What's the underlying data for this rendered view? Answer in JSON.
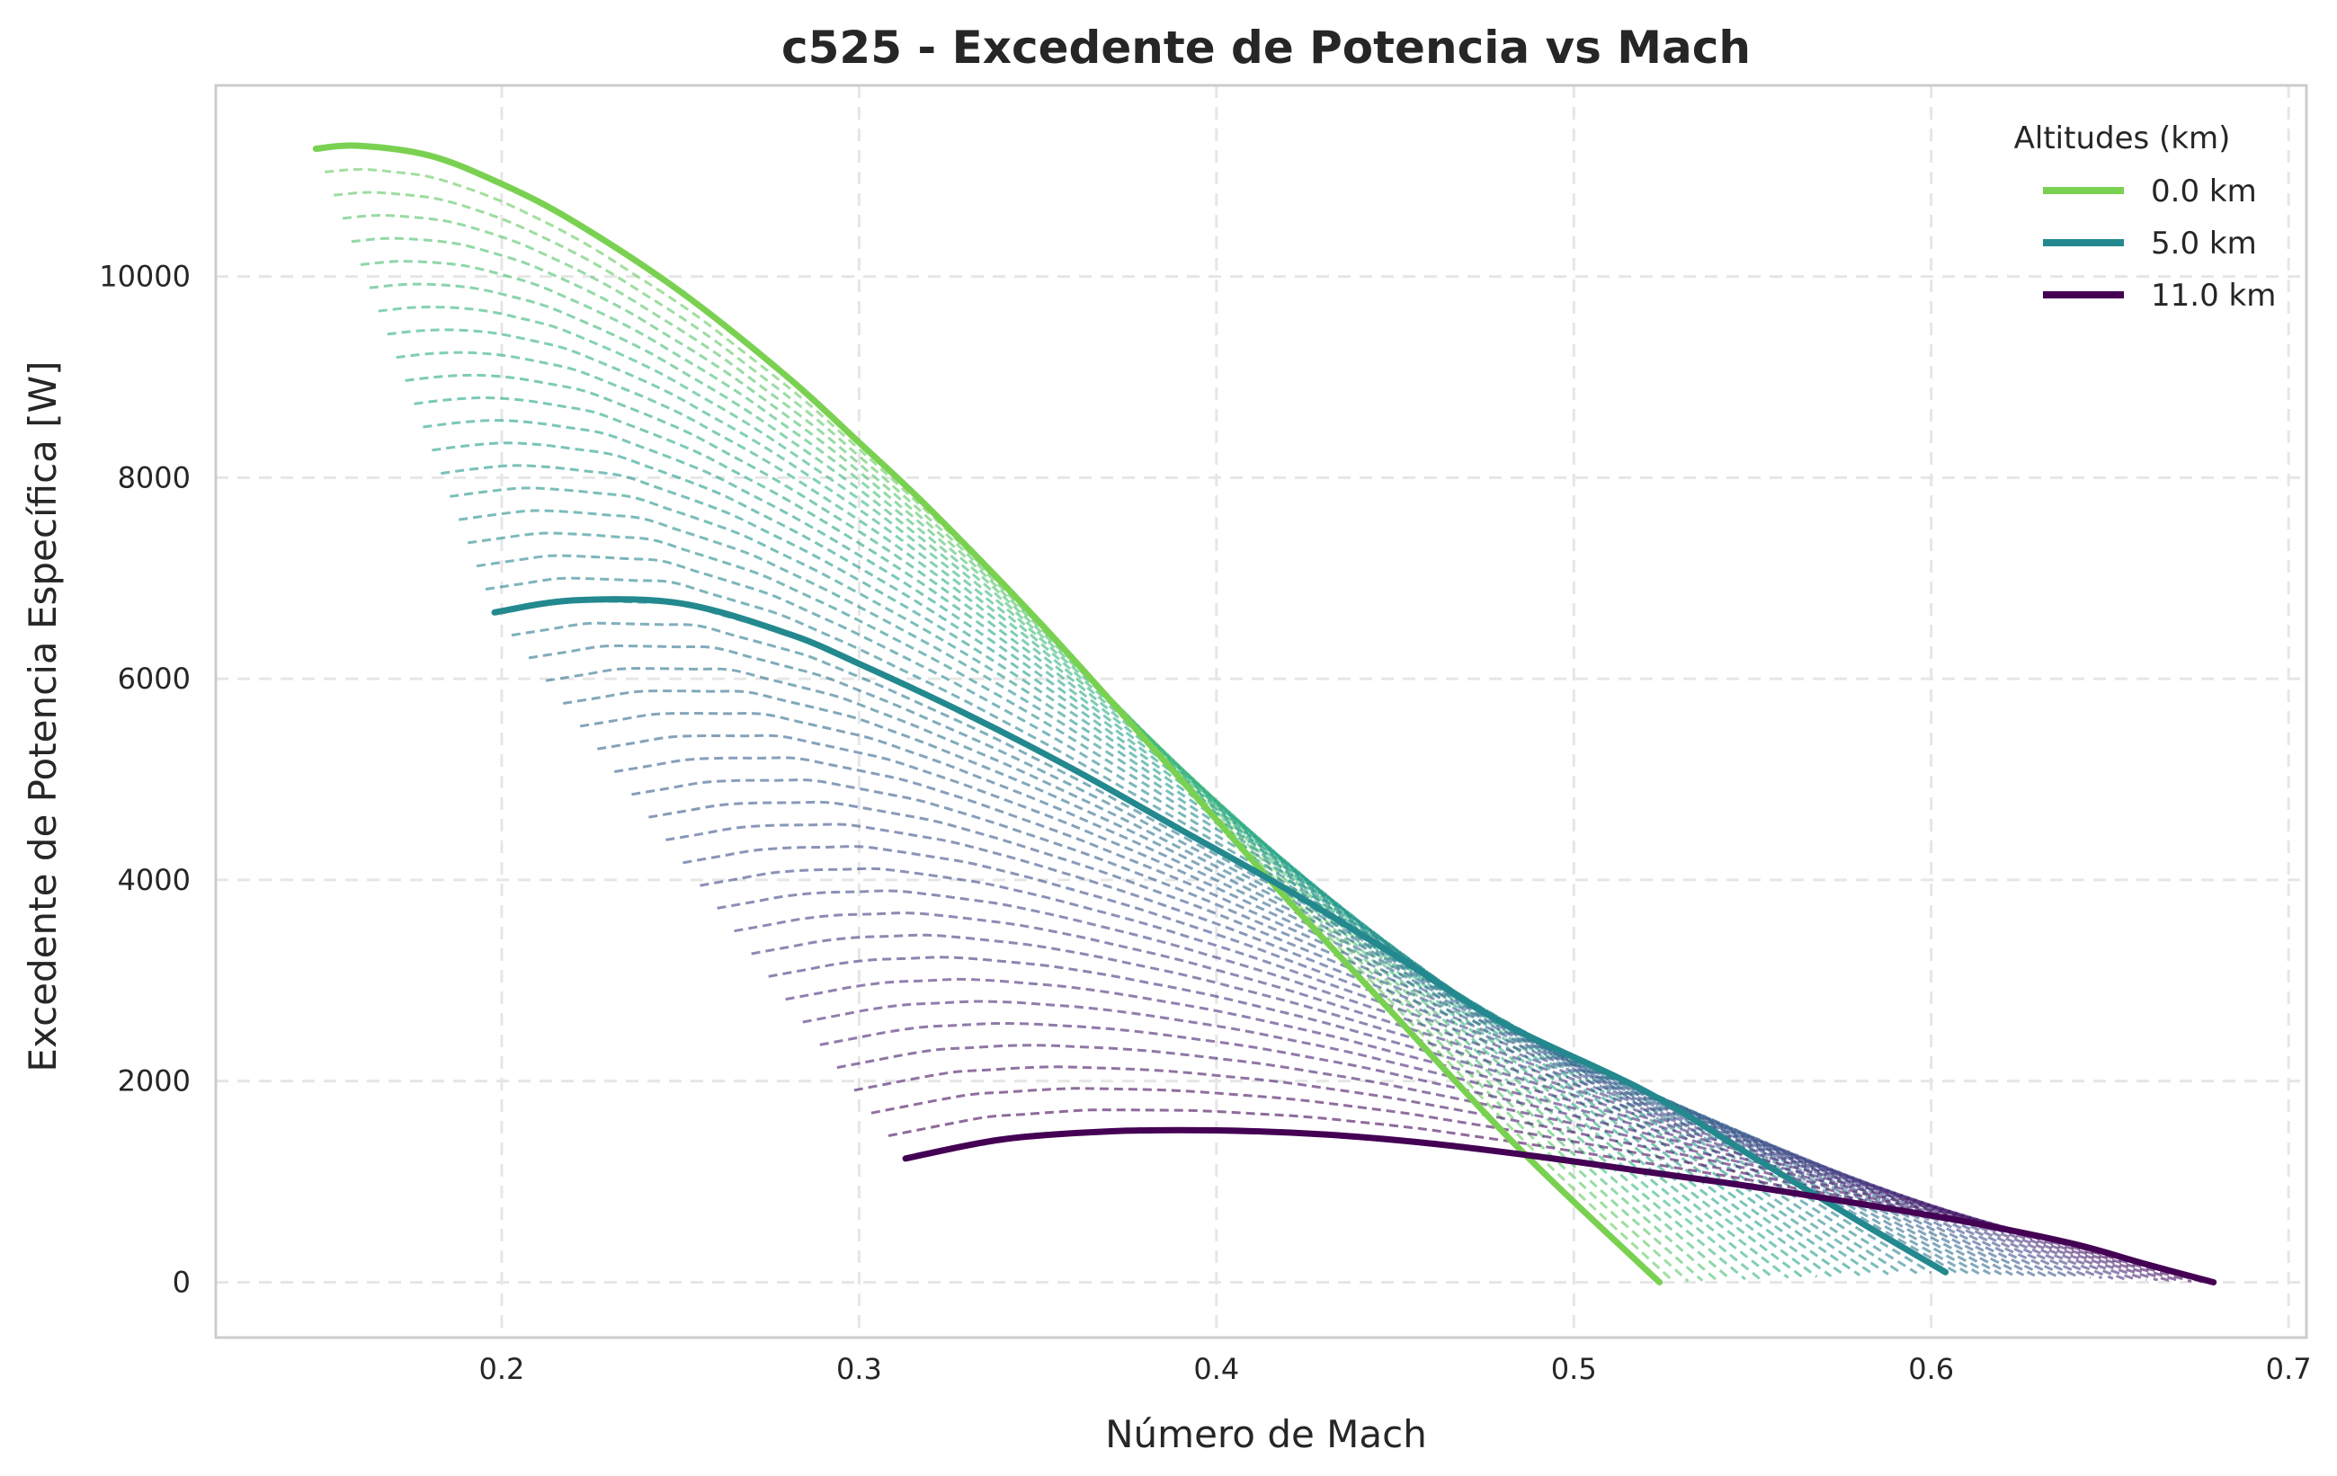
{
  "chart_data": {
    "type": "line",
    "title": "c525 - Excedente de Potencia vs Mach",
    "xlabel": "Número de Mach",
    "ylabel": "Excedente de Potencia Específica [W]",
    "xlim": [
      0.12,
      0.705
    ],
    "ylim": [
      -550,
      11900
    ],
    "xticks": [
      0.2,
      0.3,
      0.4,
      0.5,
      0.6,
      0.7
    ],
    "xtick_labels": [
      "0.2",
      "0.3",
      "0.4",
      "0.5",
      "0.6",
      "0.7"
    ],
    "yticks": [
      0,
      2000,
      4000,
      6000,
      8000,
      10000
    ],
    "ytick_labels": [
      "0",
      "2000",
      "4000",
      "6000",
      "8000",
      "10000"
    ],
    "grid": true,
    "legend": {
      "title": "Altitudes (km)",
      "placement": "top-right",
      "entries": [
        "0.0 km",
        "5.0 km",
        "11.0 km"
      ]
    },
    "colormap": "viridis",
    "series": [
      {
        "name": "0.0 km",
        "altitude_km": 0.0,
        "color": "#7ad151",
        "style": "solid",
        "x": [
          0.148,
          0.16,
          0.18,
          0.2,
          0.22,
          0.25,
          0.28,
          0.3,
          0.32,
          0.35,
          0.38,
          0.4,
          0.42,
          0.45,
          0.48,
          0.5,
          0.524
        ],
        "y": [
          11270,
          11300,
          11200,
          10920,
          10550,
          9850,
          9000,
          8350,
          7680,
          6580,
          5400,
          4600,
          3800,
          2650,
          1500,
          800,
          0
        ]
      },
      {
        "name": "5.0 km",
        "altitude_km": 5.0,
        "color": "#23898e",
        "style": "solid",
        "x": [
          0.198,
          0.22,
          0.25,
          0.28,
          0.3,
          0.33,
          0.36,
          0.39,
          0.42,
          0.45,
          0.48,
          0.52,
          0.55,
          0.58,
          0.604
        ],
        "y": [
          6660,
          6780,
          6750,
          6450,
          6150,
          5650,
          5100,
          4500,
          3900,
          3250,
          2580,
          1900,
          1250,
          600,
          100
        ]
      },
      {
        "name": "11.0 km",
        "altitude_km": 11.0,
        "color": "#440154",
        "style": "solid",
        "x": [
          0.313,
          0.34,
          0.37,
          0.4,
          0.43,
          0.46,
          0.49,
          0.52,
          0.55,
          0.58,
          0.61,
          0.64,
          0.66,
          0.679
        ],
        "y": [
          1230,
          1420,
          1500,
          1510,
          1470,
          1380,
          1250,
          1100,
          950,
          780,
          600,
          380,
          180,
          0
        ]
      }
    ],
    "intermediate_curves": {
      "style": "dashed",
      "description_count": 43,
      "altitude_range_km": [
        0.25,
        10.75
      ]
    }
  }
}
